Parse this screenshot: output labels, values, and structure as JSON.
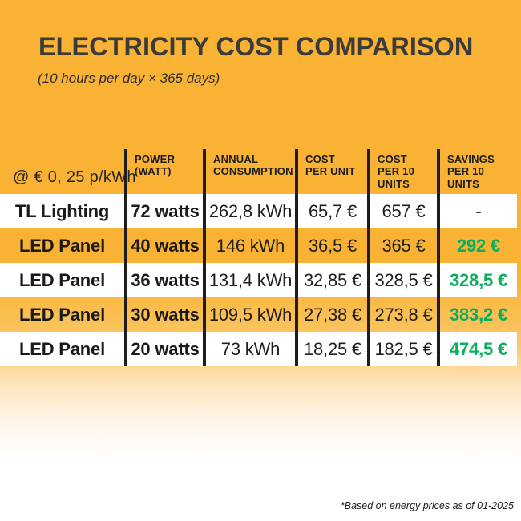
{
  "chart_data": {
    "type": "table",
    "title": "ELECTRICITY COST COMPARISON",
    "subtitle": "(10 hours per day × 365 days)",
    "rate_label": "@ € 0, 25 p/kWh",
    "columns": [
      "POWER (WATT)",
      "ANNUAL CONSUMPTION",
      "COST PER UNIT",
      "COST PER 10 UNITS",
      "SAVINGS PER 10 UNITS"
    ],
    "columns_display": [
      "POWER\n(WATT)",
      "ANNUAL\nCONSUMPTION",
      "COST\nPER UNIT",
      "COST\nPER 10\nUNITS",
      "SAVINGS\nPER 10\nUNITS"
    ],
    "rows": [
      {
        "product": "TL Lighting",
        "power": "72 watts",
        "annual_consumption": "262,8 kWh",
        "cost_per_unit": "65,7 €",
        "cost_per_10_units": "657 €",
        "savings_per_10_units": "-"
      },
      {
        "product": "LED Panel",
        "power": "40 watts",
        "annual_consumption": "146 kWh",
        "cost_per_unit": "36,5 €",
        "cost_per_10_units": "365 €",
        "savings_per_10_units": "292 €"
      },
      {
        "product": "LED Panel",
        "power": "36 watts",
        "annual_consumption": "131,4 kWh",
        "cost_per_unit": "32,85 €",
        "cost_per_10_units": "328,5 €",
        "savings_per_10_units": "328,5 €"
      },
      {
        "product": "LED Panel",
        "power": "30 watts",
        "annual_consumption": "109,5 kWh",
        "cost_per_unit": "27,38 €",
        "cost_per_10_units": "273,8 €",
        "savings_per_10_units": "383,2 €"
      },
      {
        "product": "LED Panel",
        "power": "20 watts",
        "annual_consumption": "73 kWh",
        "cost_per_unit": "18,25 €",
        "cost_per_10_units": "182,5 €",
        "savings_per_10_units": "474,5 €"
      }
    ],
    "footnote": "*Based on energy prices as of 01-2025",
    "layout": {
      "grid": false,
      "row_striping": "white / orange alternating"
    }
  },
  "colors": {
    "background_orange": "#F9B233",
    "row_white": "#FFFFFF",
    "divider_black": "#1D1D1B",
    "title_dark": "#3B3B3A",
    "savings_green": "#0CAD5D",
    "fade_to": "#FFFFFF"
  }
}
